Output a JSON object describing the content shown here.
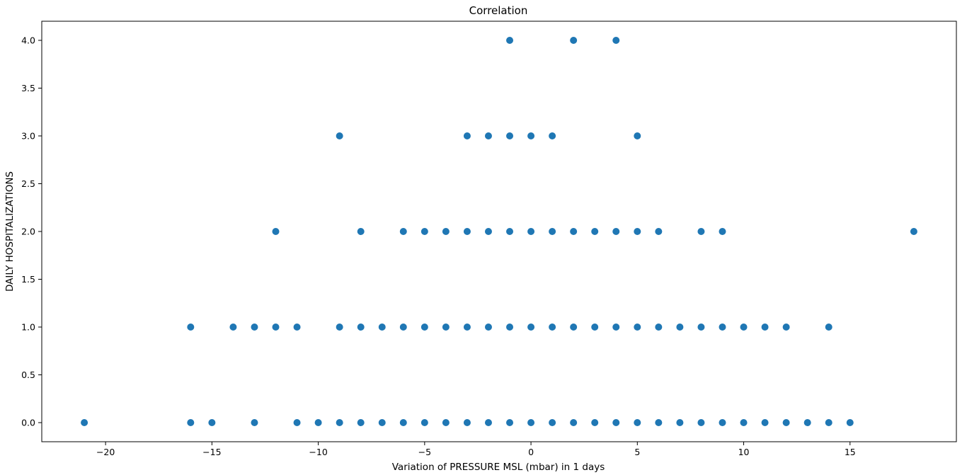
{
  "chart_data": {
    "type": "scatter",
    "title": "Correlation",
    "xlabel": "Variation of PRESSURE MSL (mbar) in 1 days",
    "ylabel": "DAILY HOSPITALIZATIONS",
    "xlim": [
      -23,
      20
    ],
    "ylim": [
      -0.2,
      4.2
    ],
    "xticks": [
      -20,
      -15,
      -10,
      -5,
      0,
      5,
      10,
      15
    ],
    "yticks": [
      0,
      0.5,
      1,
      1.5,
      2,
      2.5,
      3,
      3.5,
      4
    ],
    "xtick_labels": [
      "−20",
      "−15",
      "−10",
      "−5",
      "0",
      "5",
      "10",
      "15"
    ],
    "ytick_labels": [
      "0.0",
      "0.5",
      "1.0",
      "1.5",
      "2.0",
      "2.5",
      "3.0",
      "3.5",
      "4.0"
    ],
    "grid": false,
    "marker_color": "#1f77b4",
    "points": [
      [
        -21,
        0
      ],
      [
        -16,
        0
      ],
      [
        -15,
        0
      ],
      [
        -13,
        0
      ],
      [
        -11,
        0
      ],
      [
        -10,
        0
      ],
      [
        -9,
        0
      ],
      [
        -8,
        0
      ],
      [
        -7,
        0
      ],
      [
        -6,
        0
      ],
      [
        -5,
        0
      ],
      [
        -4,
        0
      ],
      [
        -3,
        0
      ],
      [
        -2,
        0
      ],
      [
        -1,
        0
      ],
      [
        0,
        0
      ],
      [
        1,
        0
      ],
      [
        2,
        0
      ],
      [
        3,
        0
      ],
      [
        4,
        0
      ],
      [
        5,
        0
      ],
      [
        6,
        0
      ],
      [
        7,
        0
      ],
      [
        8,
        0
      ],
      [
        9,
        0
      ],
      [
        10,
        0
      ],
      [
        11,
        0
      ],
      [
        12,
        0
      ],
      [
        13,
        0
      ],
      [
        14,
        0
      ],
      [
        15,
        0
      ],
      [
        -16,
        1
      ],
      [
        -14,
        1
      ],
      [
        -13,
        1
      ],
      [
        -12,
        1
      ],
      [
        -11,
        1
      ],
      [
        -9,
        1
      ],
      [
        -8,
        1
      ],
      [
        -7,
        1
      ],
      [
        -6,
        1
      ],
      [
        -5,
        1
      ],
      [
        -4,
        1
      ],
      [
        -3,
        1
      ],
      [
        -2,
        1
      ],
      [
        -1,
        1
      ],
      [
        0,
        1
      ],
      [
        1,
        1
      ],
      [
        2,
        1
      ],
      [
        3,
        1
      ],
      [
        4,
        1
      ],
      [
        5,
        1
      ],
      [
        6,
        1
      ],
      [
        7,
        1
      ],
      [
        8,
        1
      ],
      [
        9,
        1
      ],
      [
        10,
        1
      ],
      [
        11,
        1
      ],
      [
        12,
        1
      ],
      [
        14,
        1
      ],
      [
        -12,
        2
      ],
      [
        -8,
        2
      ],
      [
        -6,
        2
      ],
      [
        -5,
        2
      ],
      [
        -4,
        2
      ],
      [
        -3,
        2
      ],
      [
        -2,
        2
      ],
      [
        -1,
        2
      ],
      [
        0,
        2
      ],
      [
        1,
        2
      ],
      [
        2,
        2
      ],
      [
        3,
        2
      ],
      [
        4,
        2
      ],
      [
        5,
        2
      ],
      [
        6,
        2
      ],
      [
        8,
        2
      ],
      [
        9,
        2
      ],
      [
        18,
        2
      ],
      [
        -9,
        3
      ],
      [
        -3,
        3
      ],
      [
        -2,
        3
      ],
      [
        -1,
        3
      ],
      [
        0,
        3
      ],
      [
        1,
        3
      ],
      [
        5,
        3
      ],
      [
        -1,
        4
      ],
      [
        2,
        4
      ],
      [
        4,
        4
      ]
    ]
  }
}
